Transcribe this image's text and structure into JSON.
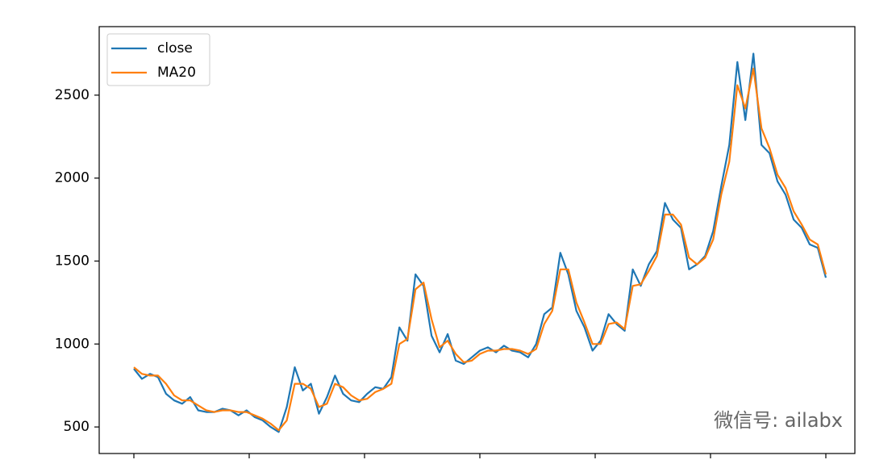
{
  "chart_data": {
    "type": "line",
    "series": [
      {
        "name": "close",
        "color": "#1f77b4",
        "values": [
          850,
          790,
          820,
          800,
          700,
          660,
          640,
          680,
          600,
          590,
          590,
          610,
          600,
          570,
          600,
          560,
          540,
          500,
          470,
          620,
          860,
          720,
          760,
          580,
          680,
          810,
          700,
          660,
          650,
          700,
          740,
          730,
          800,
          1100,
          1020,
          1420,
          1350,
          1050,
          950,
          1060,
          900,
          880,
          920,
          960,
          980,
          950,
          990,
          960,
          950,
          920,
          1000,
          1180,
          1220,
          1550,
          1420,
          1200,
          1100,
          960,
          1020,
          1180,
          1120,
          1080,
          1450,
          1350,
          1480,
          1560,
          1850,
          1750,
          1700,
          1450,
          1480,
          1530,
          1680,
          1950,
          2200,
          2700,
          2350,
          2750,
          2200,
          2150,
          1980,
          1900,
          1750,
          1700,
          1600,
          1580,
          1400
        ]
      },
      {
        "name": "MA20",
        "color": "#ff7f0e",
        "values": [
          860,
          820,
          810,
          810,
          760,
          690,
          660,
          660,
          630,
          600,
          590,
          600,
          600,
          590,
          590,
          570,
          550,
          520,
          480,
          540,
          760,
          760,
          730,
          620,
          640,
          760,
          740,
          690,
          660,
          670,
          710,
          730,
          760,
          1000,
          1030,
          1330,
          1370,
          1150,
          980,
          1020,
          940,
          890,
          900,
          940,
          960,
          960,
          970,
          970,
          960,
          940,
          970,
          1120,
          1200,
          1450,
          1450,
          1250,
          1130,
          1000,
          1000,
          1120,
          1130,
          1090,
          1350,
          1360,
          1440,
          1530,
          1780,
          1780,
          1720,
          1520,
          1480,
          1520,
          1630,
          1900,
          2100,
          2560,
          2420,
          2660,
          2300,
          2180,
          2020,
          1940,
          1800,
          1720,
          1630,
          1600,
          1420
        ]
      }
    ],
    "ylim": [
      340,
      2913
    ],
    "yticks": [
      500,
      1000,
      1500,
      2000,
      2500
    ],
    "legend": "upper left",
    "watermark": "微信号: ailabx"
  }
}
